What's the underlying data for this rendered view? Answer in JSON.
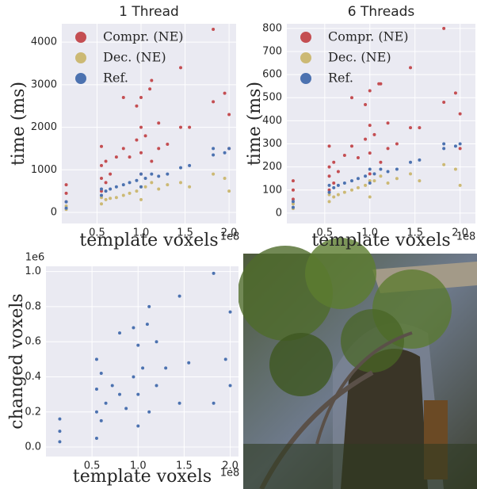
{
  "chart_data": [
    {
      "type": "scatter",
      "title": "1 Thread",
      "xlabel": "template voxels",
      "ylabel": "time (ms)",
      "x_offset_label": "1e8",
      "xlim": [
        0.1,
        2.08
      ],
      "ylim": [
        -260,
        4430
      ],
      "xticks": [
        0.5,
        {
          "value": 1,
          "label": "1.0"
        },
        1.5,
        {
          "value": 2,
          "label": "2.0"
        }
      ],
      "yticks": [
        0,
        1000,
        2000,
        3000,
        4000
      ],
      "grid": true,
      "legend": "upper left",
      "series": [
        {
          "name": "Compr. (NE)",
          "color": "#c44e52",
          "x": [
            0.15,
            0.15,
            0.15,
            0.55,
            0.55,
            0.55,
            0.55,
            0.6,
            0.6,
            0.65,
            0.72,
            0.8,
            0.8,
            0.87,
            0.95,
            0.95,
            1.0,
            1.0,
            1.0,
            1.0,
            1.05,
            1.1,
            1.12,
            1.12,
            1.2,
            1.2,
            1.3,
            1.45,
            1.45,
            1.55,
            1.82,
            1.82,
            1.95,
            2.0,
            2.0
          ],
          "values": [
            250,
            450,
            650,
            500,
            800,
            1100,
            1550,
            700,
            1200,
            900,
            1300,
            1500,
            2700,
            1300,
            1700,
            2500,
            900,
            1400,
            2000,
            2700,
            1800,
            2900,
            1200,
            3100,
            1500,
            2100,
            1600,
            2000,
            3400,
            2000,
            2600,
            4300,
            2800,
            1500,
            2300
          ]
        },
        {
          "name": "Dec. (NE)",
          "color": "#ccb974",
          "x": [
            0.15,
            0.15,
            0.55,
            0.55,
            0.6,
            0.65,
            0.72,
            0.8,
            0.87,
            0.95,
            1.0,
            1.0,
            1.05,
            1.12,
            1.2,
            1.3,
            1.45,
            1.55,
            1.82,
            1.95,
            2.0
          ],
          "values": [
            70,
            150,
            200,
            350,
            300,
            330,
            350,
            400,
            450,
            500,
            300,
            600,
            600,
            700,
            550,
            650,
            700,
            600,
            900,
            800,
            500
          ]
        },
        {
          "name": "Ref.",
          "color": "#4c72b0",
          "x": [
            0.15,
            0.15,
            0.55,
            0.55,
            0.6,
            0.65,
            0.72,
            0.8,
            0.87,
            0.95,
            1.0,
            1.0,
            1.05,
            1.12,
            1.2,
            1.3,
            1.45,
            1.55,
            1.82,
            1.82,
            1.95,
            2.0
          ],
          "values": [
            100,
            250,
            400,
            550,
            500,
            550,
            600,
            650,
            700,
            750,
            600,
            900,
            800,
            900,
            850,
            900,
            1050,
            1100,
            1350,
            1500,
            1400,
            1500
          ]
        }
      ]
    },
    {
      "type": "scatter",
      "title": "6 Threads",
      "xlabel": "template voxels",
      "ylabel": "time (ms)",
      "x_offset_label": "1e8",
      "xlim": [
        0.08,
        2.17
      ],
      "ylim": [
        -45,
        820
      ],
      "xticks": [
        0.5,
        {
          "value": 1,
          "label": "1.0"
        },
        1.5,
        {
          "value": 2,
          "label": "2.0"
        }
      ],
      "yticks": [
        0,
        100,
        200,
        300,
        400,
        500,
        600,
        700,
        800
      ],
      "grid": true,
      "legend": "upper left",
      "series": [
        {
          "name": "Compr. (NE)",
          "color": "#c44e52",
          "x": [
            0.15,
            0.15,
            0.15,
            0.55,
            0.55,
            0.55,
            0.55,
            0.6,
            0.6,
            0.65,
            0.72,
            0.8,
            0.8,
            0.87,
            0.95,
            0.95,
            1.0,
            1.0,
            1.0,
            1.0,
            1.05,
            1.1,
            1.12,
            1.12,
            1.2,
            1.2,
            1.3,
            1.45,
            1.45,
            1.55,
            1.82,
            1.82,
            1.95,
            2.0,
            2.0
          ],
          "values": [
            60,
            100,
            140,
            100,
            160,
            200,
            290,
            130,
            220,
            180,
            250,
            290,
            500,
            240,
            320,
            470,
            170,
            260,
            380,
            530,
            340,
            560,
            220,
            560,
            280,
            390,
            300,
            370,
            630,
            370,
            480,
            800,
            520,
            280,
            430
          ]
        },
        {
          "name": "Dec. (NE)",
          "color": "#ccb974",
          "x": [
            0.15,
            0.15,
            0.55,
            0.55,
            0.6,
            0.65,
            0.72,
            0.8,
            0.87,
            0.95,
            1.0,
            1.0,
            1.05,
            1.12,
            1.2,
            1.3,
            1.45,
            1.55,
            1.82,
            1.95,
            2.0
          ],
          "values": [
            20,
            40,
            50,
            80,
            70,
            80,
            90,
            100,
            110,
            120,
            70,
            140,
            140,
            160,
            130,
            150,
            170,
            140,
            210,
            190,
            120
          ]
        },
        {
          "name": "Ref.",
          "color": "#4c72b0",
          "x": [
            0.15,
            0.15,
            0.55,
            0.55,
            0.6,
            0.65,
            0.72,
            0.8,
            0.87,
            0.95,
            1.0,
            1.0,
            1.05,
            1.12,
            1.2,
            1.3,
            1.45,
            1.55,
            1.82,
            1.82,
            1.95,
            2.0
          ],
          "values": [
            25,
            50,
            90,
            120,
            110,
            120,
            130,
            140,
            150,
            160,
            130,
            190,
            170,
            190,
            180,
            190,
            220,
            230,
            280,
            300,
            290,
            300
          ]
        }
      ]
    },
    {
      "type": "scatter",
      "xlabel": "template voxels",
      "ylabel": "changed voxels",
      "x_offset_label": "1e8",
      "y_offset_label": "1e6",
      "xlim": [
        0.0,
        2.09
      ],
      "ylim": [
        -0.054,
        1.03
      ],
      "xticks": [
        0.5,
        {
          "value": 1,
          "label": "1.0"
        },
        1.5,
        {
          "value": 2,
          "label": "2.0"
        }
      ],
      "yticks": [
        {
          "value": 0,
          "label": "0.0"
        },
        0.2,
        0.4,
        0.6,
        0.8,
        {
          "value": 1,
          "label": "1.0"
        }
      ],
      "grid": true,
      "series": [
        {
          "color": "#4c72b0",
          "x": [
            0.15,
            0.15,
            0.15,
            0.55,
            0.55,
            0.55,
            0.55,
            0.6,
            0.6,
            0.65,
            0.72,
            0.8,
            0.8,
            0.87,
            0.95,
            0.95,
            1.0,
            1.0,
            1.0,
            1.05,
            1.1,
            1.12,
            1.12,
            1.2,
            1.2,
            1.3,
            1.45,
            1.45,
            1.55,
            1.82,
            1.82,
            1.95,
            2.0,
            2.0
          ],
          "values": [
            0.03,
            0.09,
            0.16,
            0.05,
            0.2,
            0.33,
            0.5,
            0.15,
            0.42,
            0.25,
            0.35,
            0.3,
            0.65,
            0.22,
            0.4,
            0.68,
            0.12,
            0.3,
            0.58,
            0.45,
            0.7,
            0.2,
            0.8,
            0.35,
            0.6,
            0.45,
            0.25,
            0.86,
            0.48,
            0.25,
            0.99,
            0.5,
            0.35,
            0.77
          ]
        }
      ]
    }
  ]
}
